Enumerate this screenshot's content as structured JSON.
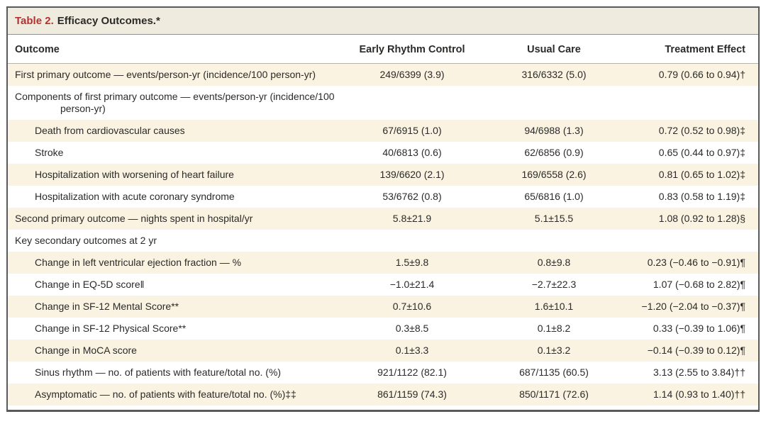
{
  "colors": {
    "accent_red": "#B5312E",
    "title_bar_bg": "#F0EBDF",
    "stripe_bg": "#FAF3E1",
    "border_dark": "#595A5C",
    "text": "#2B2A28"
  },
  "table": {
    "title_label": "Table 2.",
    "title_text": "Efficacy Outcomes.*",
    "columns": [
      "Outcome",
      "Early Rhythm Control",
      "Usual Care",
      "Treatment Effect"
    ],
    "rows": [
      {
        "label": "First primary outcome — events/person-yr (incidence/100 person-yr)",
        "indent": 0,
        "erc": "249/6399 (3.9)",
        "uc": "316/6332 (5.0)",
        "te": "0.79 (0.66 to 0.94)†"
      },
      {
        "label": "Components of first primary outcome — events/person-yr (incidence/100 person-yr)",
        "indent": 0,
        "erc": "",
        "uc": "",
        "te": ""
      },
      {
        "label": "Death from cardiovascular causes",
        "indent": 1,
        "erc": "67/6915 (1.0)",
        "uc": "94/6988 (1.3)",
        "te": "0.72 (0.52 to 0.98)‡"
      },
      {
        "label": "Stroke",
        "indent": 1,
        "erc": "40/6813 (0.6)",
        "uc": "62/6856 (0.9)",
        "te": "0.65 (0.44 to 0.97)‡"
      },
      {
        "label": "Hospitalization with worsening of heart failure",
        "indent": 1,
        "erc": "139/6620 (2.1)",
        "uc": "169/6558 (2.6)",
        "te": "0.81 (0.65 to 1.02)‡"
      },
      {
        "label": "Hospitalization with acute coronary syndrome",
        "indent": 1,
        "erc": "53/6762 (0.8)",
        "uc": "65/6816 (1.0)",
        "te": "0.83 (0.58 to 1.19)‡"
      },
      {
        "label": "Second primary outcome — nights spent in hospital/yr",
        "indent": 0,
        "erc": "5.8±21.9",
        "uc": "5.1±15.5",
        "te": "1.08 (0.92 to 1.28)§"
      },
      {
        "label": "Key secondary outcomes at 2 yr",
        "indent": 0,
        "erc": "",
        "uc": "",
        "te": ""
      },
      {
        "label": "Change in left ventricular ejection fraction — %",
        "indent": 1,
        "erc": "1.5±9.8",
        "uc": "0.8±9.8",
        "te": "0.23 (−0.46 to −0.91)¶"
      },
      {
        "label": "Change in EQ-5D score‖",
        "indent": 1,
        "erc": "−1.0±21.4",
        "uc": "−2.7±22.3",
        "te": "1.07 (−0.68 to 2.82)¶"
      },
      {
        "label": "Change in SF-12 Mental Score**",
        "indent": 1,
        "erc": "0.7±10.6",
        "uc": "1.6±10.1",
        "te": "−1.20 (−2.04 to −0.37)¶"
      },
      {
        "label": "Change in SF-12 Physical Score**",
        "indent": 1,
        "erc": "0.3±8.5",
        "uc": "0.1±8.2",
        "te": "0.33 (−0.39 to 1.06)¶"
      },
      {
        "label": "Change in MoCA score",
        "indent": 1,
        "erc": "0.1±3.3",
        "uc": "0.1±3.2",
        "te": "−0.14 (−0.39 to 0.12)¶"
      },
      {
        "label": "Sinus rhythm — no. of patients with feature/total no. (%)",
        "indent": 1,
        "erc": "921/1122 (82.1)",
        "uc": "687/1135 (60.5)",
        "te": "3.13 (2.55 to 3.84)††"
      },
      {
        "label": "Asymptomatic — no. of patients with feature/total no. (%)‡‡",
        "indent": 1,
        "erc": "861/1159 (74.3)",
        "uc": "850/1171 (72.6)",
        "te": "1.14 (0.93 to 1.40)††"
      }
    ]
  }
}
